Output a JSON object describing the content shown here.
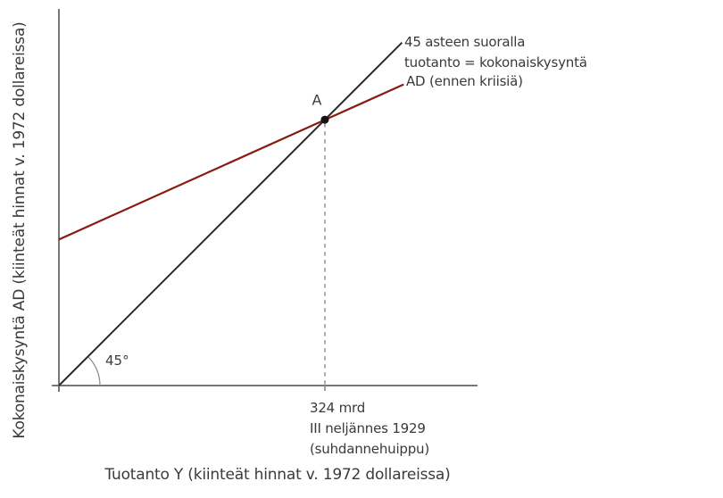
{
  "colors": {
    "background": "#ffffff",
    "text": "#3a3a3a",
    "axis": "#777777",
    "line45": "#2b2b2b",
    "ad_line": "#8a1b11",
    "guide_dash": "#999999",
    "point": "#151515"
  },
  "labels": {
    "y_axis": "Kokonaiskysyntä AD (kiinteät hinnat v. 1972 dollareissa)",
    "x_axis": "Tuotanto Y (kiinteät hinnat v. 1972 dollareissa)",
    "line45_line1": "45 asteen suoralla",
    "line45_line2": "tuotanto = kokonaiskysyntä",
    "ad_line": "AD (ennen kriisiä)",
    "point": "A",
    "angle": "45°",
    "x_annotation_line1": "324 mrd",
    "x_annotation_line2": "III neljännes 1929",
    "x_annotation_line3": "(suhdannehuippu)"
  },
  "chart_data": {
    "type": "line",
    "title": "",
    "xlabel": "Tuotanto Y (kiinteät hinnat v. 1972 dollareissa)",
    "ylabel": "Kokonaiskysyntä AD (kiinteät hinnat v. 1972 dollareissa)",
    "x_range": [
      0,
      510
    ],
    "y_range": [
      0,
      459
    ],
    "grid": false,
    "axis_ticks": "none",
    "legend_position": "inline-right-of-lines",
    "series": [
      {
        "name": "45 asteen suoralla tuotanto = kokonaiskysyntä",
        "color": "#2b2b2b",
        "x": [
          0,
          418
        ],
        "y": [
          0,
          418
        ]
      },
      {
        "name": "AD (ennen kriisiä)",
        "color": "#8a1b11",
        "x": [
          0,
          420
        ],
        "y": [
          178,
          367
        ]
      }
    ],
    "equilibrium_point": {
      "label": "A",
      "x": 324,
      "y": 324,
      "note": "324 mrd, III neljännes 1929 (suhdannehuippu)"
    },
    "angle_annotation": "45°",
    "units": "mrd (v. 1972 dollareissa)"
  }
}
